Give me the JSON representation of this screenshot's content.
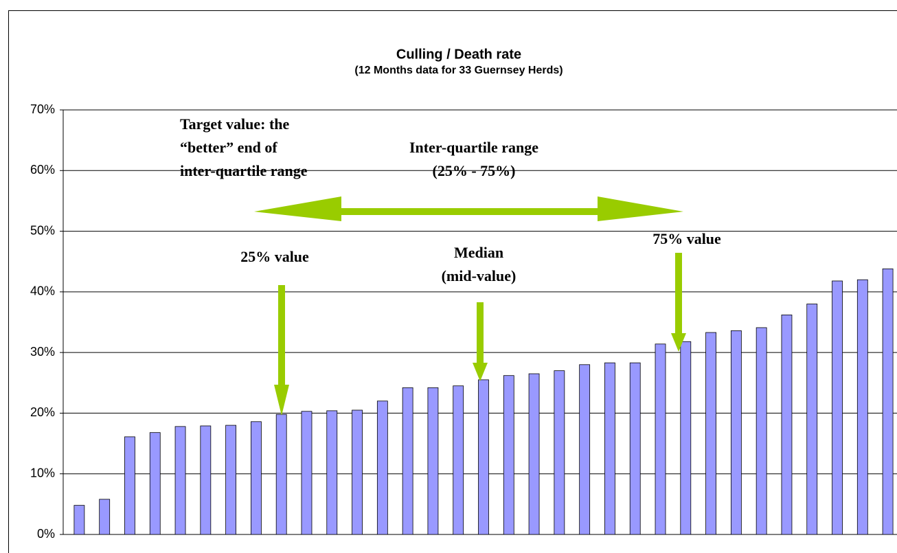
{
  "chart_data": {
    "type": "bar",
    "title": "Culling / Death rate",
    "subtitle": "(12 Months data for 33 Guernsey Herds)",
    "values": [
      4.8,
      5.8,
      16.1,
      16.8,
      17.8,
      17.9,
      18.0,
      18.6,
      19.8,
      20.3,
      20.4,
      20.5,
      22.0,
      24.2,
      24.2,
      24.5,
      25.5,
      26.2,
      26.5,
      27.0,
      28.0,
      28.3,
      28.3,
      31.4,
      31.8,
      33.3,
      33.6,
      34.1,
      36.2,
      38.0,
      41.8,
      42.0,
      43.8
    ],
    "color": "#9999ff",
    "ylim": [
      0,
      70
    ],
    "yticks": [
      {
        "value": 0,
        "label": "0%"
      },
      {
        "value": 10,
        "label": "10%"
      },
      {
        "value": 20,
        "label": "20%"
      },
      {
        "value": 30,
        "label": "30%"
      },
      {
        "value": 40,
        "label": "40%"
      },
      {
        "value": 50,
        "label": "50%"
      },
      {
        "value": 60,
        "label": "60%"
      },
      {
        "value": 70,
        "label": "70%"
      }
    ],
    "grid": true,
    "annotations": [
      [
        "Target value: the",
        "“better” end of",
        "inter-quartile range"
      ],
      [
        "Inter-quartile range",
        "(25% - 75%)"
      ],
      [
        "25% value"
      ],
      [
        "Median",
        "(mid-value)"
      ],
      [
        "75% value"
      ]
    ]
  }
}
